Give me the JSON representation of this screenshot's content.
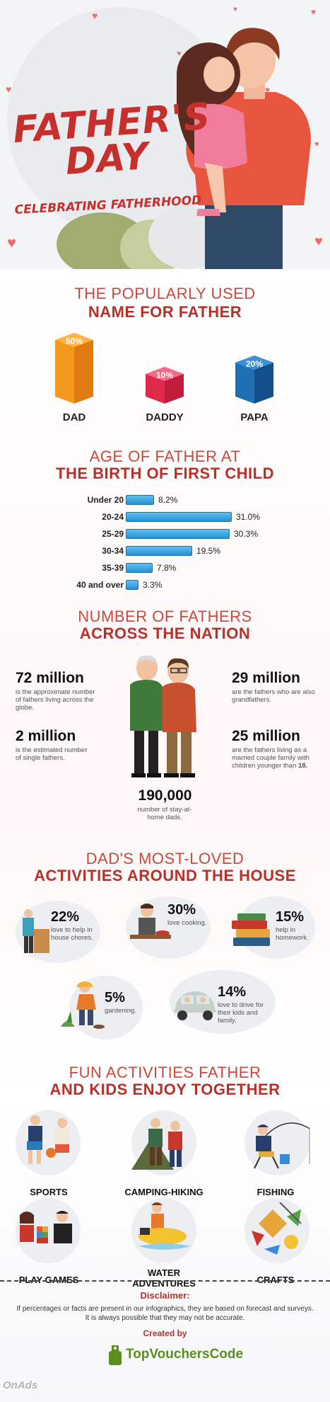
{
  "hero": {
    "title_line1": "FATHER'S",
    "title_line2": "DAY",
    "subtitle": "CELEBRATING FATHERHOOD"
  },
  "names": {
    "heading_light": "THE POPULARLY USED",
    "heading_bold": "NAME FOR FATHER",
    "items": [
      {
        "label": "DAD",
        "percent": "50%",
        "value": 50,
        "color": "#f7931e"
      },
      {
        "label": "DADDY",
        "percent": "10%",
        "value": 10,
        "color": "#e0284a"
      },
      {
        "label": "PAPA",
        "percent": "20%",
        "value": 20,
        "color": "#1f6fb5"
      }
    ]
  },
  "age": {
    "heading_light": "AGE OF FATHER AT",
    "heading_bold": "THE BIRTH OF FIRST CHILD",
    "rows": [
      {
        "label": "Under 20",
        "value": 8.2,
        "display": "8.2%"
      },
      {
        "label": "20-24",
        "value": 31.0,
        "display": "31.0%"
      },
      {
        "label": "25-29",
        "value": 30.3,
        "display": "30.3%"
      },
      {
        "label": "30-34",
        "value": 19.5,
        "display": "19.5%"
      },
      {
        "label": "35-39",
        "value": 7.8,
        "display": "7.8%"
      },
      {
        "label": "40 and over",
        "value": 3.3,
        "display": "3.3%"
      }
    ]
  },
  "fathers": {
    "heading_light": "NUMBER OF FATHERS",
    "heading_bold": "ACROSS THE NATION",
    "stat1": {
      "num": "72 million",
      "desc": "is the approximate number of fathers living across the globe."
    },
    "stat2": {
      "num": "2 million",
      "desc": "is the estimated number of single fathers."
    },
    "stat3": {
      "num": "29 million",
      "desc": "are the fathers who are also grandfathers."
    },
    "stat4": {
      "num": "25 million",
      "desc": "are the fathers living as a married couple family with children younger than",
      "desc_bold": "18."
    },
    "stat5": {
      "num": "190,000",
      "desc": "number of stay-at-home dads."
    }
  },
  "activities": {
    "heading_light": "DAD'S MOST-LOVED",
    "heading_bold": "ACTIVITIES AROUND THE HOUSE",
    "items": [
      {
        "pct": "22%",
        "desc": "love to help in house chores."
      },
      {
        "pct": "30%",
        "desc": "love cooking."
      },
      {
        "pct": "15%",
        "desc": "help in homework."
      },
      {
        "pct": "5%",
        "desc": "gardening."
      },
      {
        "pct": "14%",
        "desc": "love to drive for their kids and family."
      }
    ]
  },
  "fun": {
    "heading_light": "FUN ACTIVITIES FATHER",
    "heading_bold": "AND KIDS ENJOY TOGETHER",
    "items": [
      {
        "label": "SPORTS"
      },
      {
        "label": "CAMPING-HIKING"
      },
      {
        "label": "FISHING"
      },
      {
        "label": "PLAY GAMES"
      },
      {
        "label": "WATER ADVENTURES"
      },
      {
        "label": "CRAFTS"
      }
    ]
  },
  "footer": {
    "disclaimer_title": "Disclaimer:",
    "disclaimer_text": "If percentages or facts are present in our infographics, they are based on forecast and surveys. It is always possible that they may not be accurate.",
    "created_by": "Created by",
    "logo_text": "TopVouchersCode",
    "watermark": "OnAds"
  }
}
